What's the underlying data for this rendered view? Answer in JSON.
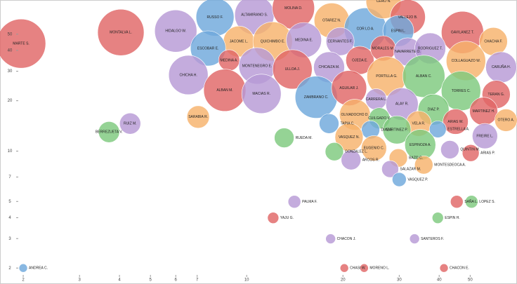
{
  "chart_data": {
    "type": "bubble",
    "x_log": true,
    "y_log": true,
    "xlim": [
      1.93,
      69
    ],
    "ylim": [
      1.82,
      80
    ],
    "xticks": [
      2,
      3,
      4,
      5,
      6,
      7,
      10,
      20,
      30,
      40,
      50
    ],
    "yticks": [
      2,
      3,
      4,
      5,
      7,
      10,
      20,
      30,
      40,
      50
    ],
    "points": [
      {
        "label": "MARTE S.",
        "x": 1.97,
        "y": 43.9,
        "size": 35,
        "color": "#e06666"
      },
      {
        "label": "MONTALVA L.",
        "x": 4.04,
        "y": 51.2,
        "size": 33,
        "color": "#e06666"
      },
      {
        "label": "HIDALGO W.",
        "x": 6.0,
        "y": 52.2,
        "size": 30,
        "color": "#b79ad6"
      },
      {
        "label": "RUSSO F.",
        "x": 7.96,
        "y": 63.2,
        "size": 27,
        "color": "#6fa8dc"
      },
      {
        "label": "ALTAMIRANO S.",
        "x": 10.57,
        "y": 65.1,
        "size": 28,
        "color": "#b79ad6"
      },
      {
        "label": "MOLINA D.",
        "x": 14.0,
        "y": 71.6,
        "size": 30,
        "color": "#e06666"
      },
      {
        "label": "OTAREZ N.",
        "x": 18.45,
        "y": 60.3,
        "size": 25,
        "color": "#f6b26b"
      },
      {
        "label": "COR LO A.",
        "x": 23.5,
        "y": 53.7,
        "size": 30,
        "color": "#6fa8dc"
      },
      {
        "label": "CERO N.",
        "x": 26.8,
        "y": 78.8,
        "size": 25,
        "color": "#f6b26b"
      },
      {
        "label": "VALLEJO B.",
        "x": 31.9,
        "y": 63.2,
        "size": 25,
        "color": "#e06666"
      },
      {
        "label": "ESPIN L.",
        "x": 29.8,
        "y": 52.2,
        "size": 22,
        "color": "#6fa8dc"
      },
      {
        "label": "GAVILANEZ T.",
        "x": 47.3,
        "y": 51.2,
        "size": 30,
        "color": "#e06666"
      },
      {
        "label": "CHACHA F.",
        "x": 59.1,
        "y": 45.2,
        "size": 20,
        "color": "#f6b26b"
      },
      {
        "label": "JACOME L.",
        "x": 9.45,
        "y": 45.2,
        "size": 22,
        "color": "#f6b26b"
      },
      {
        "label": "ESCOBAR E.",
        "x": 7.57,
        "y": 41.1,
        "size": 25,
        "color": "#6fa8dc"
      },
      {
        "label": "QUICHIMBO E.",
        "x": 12.06,
        "y": 45.2,
        "size": 28,
        "color": "#f6b26b"
      },
      {
        "label": "MEDINA E.",
        "x": 15.1,
        "y": 46.1,
        "size": 25,
        "color": "#b79ad6"
      },
      {
        "label": "CERVANTES F.",
        "x": 19.6,
        "y": 45.2,
        "size": 20,
        "color": "#b79ad6"
      },
      {
        "label": "MEDINA A.",
        "x": 8.81,
        "y": 34.9,
        "size": 15,
        "color": "#e06666"
      },
      {
        "label": "MONTENEGRO E.",
        "x": 10.78,
        "y": 32.3,
        "size": 26,
        "color": "#b79ad6"
      },
      {
        "label": "ULLOA J.",
        "x": 13.9,
        "y": 30.8,
        "size": 28,
        "color": "#e06666"
      },
      {
        "label": "CHICAIZA M.",
        "x": 18.1,
        "y": 31.7,
        "size": 22,
        "color": "#b79ad6"
      },
      {
        "label": "OJEDA E.",
        "x": 22.6,
        "y": 34.9,
        "size": 20,
        "color": "#e06666"
      },
      {
        "label": "MORALES M.",
        "x": 26.7,
        "y": 41.1,
        "size": 18,
        "color": "#e06666"
      },
      {
        "label": "NAVARRETE O.",
        "x": 31.9,
        "y": 39.2,
        "size": 20,
        "color": "#b79ad6"
      },
      {
        "label": "RODRIGUEZ T.",
        "x": 37.5,
        "y": 41.1,
        "size": 22,
        "color": "#b79ad6"
      },
      {
        "label": "COLLAGUAZO W.",
        "x": 48.5,
        "y": 34.6,
        "size": 28,
        "color": "#f6b26b"
      },
      {
        "label": "CARUÑA H.",
        "x": 62.5,
        "y": 31.7,
        "size": 22,
        "color": "#b79ad6"
      },
      {
        "label": "CHICHA H.",
        "x": 6.57,
        "y": 28.5,
        "size": 28,
        "color": "#b79ad6"
      },
      {
        "label": "ALBAN M.",
        "x": 8.54,
        "y": 23.1,
        "size": 30,
        "color": "#e06666"
      },
      {
        "label": "MACIAS R.",
        "x": 11.12,
        "y": 22.0,
        "size": 28,
        "color": "#b79ad6"
      },
      {
        "label": "PORTILLA G.",
        "x": 27.4,
        "y": 28.0,
        "size": 28,
        "color": "#f6b26b"
      },
      {
        "label": "ALBAN C.",
        "x": 35.8,
        "y": 28.0,
        "size": 30,
        "color": "#7ec97e"
      },
      {
        "label": "ZAMBRANO C.",
        "x": 16.5,
        "y": 21.0,
        "size": 30,
        "color": "#6fa8dc"
      },
      {
        "label": "AGUILAR J.",
        "x": 20.9,
        "y": 23.8,
        "size": 25,
        "color": "#e06666"
      },
      {
        "label": "TORRES C.",
        "x": 46.8,
        "y": 22.9,
        "size": 28,
        "color": "#7ec97e"
      },
      {
        "label": "TERAN G.",
        "x": 60.3,
        "y": 21.8,
        "size": 20,
        "color": "#e06666"
      },
      {
        "label": "CARRERA L.",
        "x": 25.4,
        "y": 20.4,
        "size": 15,
        "color": "#b79ad6"
      },
      {
        "label": "ALAY R.",
        "x": 30.6,
        "y": 19.1,
        "size": 23,
        "color": "#b79ad6"
      },
      {
        "label": "DIAZ P.",
        "x": 38.4,
        "y": 17.7,
        "size": 22,
        "color": "#7ec97e"
      },
      {
        "label": "MARTINEZ H.",
        "x": 55.1,
        "y": 17.3,
        "size": 20,
        "color": "#e06666"
      },
      {
        "label": "OTERO A.",
        "x": 64.7,
        "y": 15.3,
        "size": 16,
        "color": "#f6b26b"
      },
      {
        "label": "OLIVADOCHO D.",
        "x": 21.8,
        "y": 16.5,
        "size": 22,
        "color": "#f6b26b"
      },
      {
        "label": "CUILGADO V.",
        "x": 26.0,
        "y": 15.7,
        "size": 15,
        "color": "#7ec97e"
      },
      {
        "label": "SARABIA R.",
        "x": 7.05,
        "y": 16.0,
        "size": 16,
        "color": "#f6b26b"
      },
      {
        "label": "RUIZ M.",
        "x": 4.32,
        "y": 14.6,
        "size": 15,
        "color": "#b79ad6"
      },
      {
        "label": "BERREZUETA V.",
        "x": 3.71,
        "y": 13.0,
        "size": 15,
        "color": "#7ec97e"
      },
      {
        "label": "TAPIA C.",
        "x": 18.1,
        "y": 14.6,
        "size": 14,
        "color": "#6fa8dc"
      },
      {
        "label": "VELA R.",
        "x": 34.5,
        "y": 14.6,
        "size": 18,
        "color": "#f6b26b"
      },
      {
        "label": "ARIAS W.",
        "x": 45.0,
        "y": 15.0,
        "size": 18,
        "color": "#e06666"
      },
      {
        "label": "FREIRE L.",
        "x": 55.6,
        "y": 12.3,
        "size": 18,
        "color": "#b79ad6"
      },
      {
        "label": "DIAZ F.",
        "x": 24.4,
        "y": 13.4,
        "size": 13,
        "color": "#6fa8dc"
      },
      {
        "label": "MARTINEZ P.",
        "x": 29.5,
        "y": 13.4,
        "size": 20,
        "color": "#7ec97e"
      },
      {
        "label": "ESTRELLA A.",
        "x": 39.6,
        "y": 13.5,
        "size": 12,
        "color": "#6fa8dc"
      },
      {
        "label": "VASQUEZ N.",
        "x": 20.9,
        "y": 12.1,
        "size": 20,
        "color": "#f6b26b"
      },
      {
        "label": "RUEDA M.",
        "x": 13.1,
        "y": 12.0,
        "size": 14,
        "color": "#7ec97e"
      },
      {
        "label": "ESPINOZA A.",
        "x": 34.9,
        "y": 10.9,
        "size": 22,
        "color": "#7ec97e"
      },
      {
        "label": "EUGENIO C.",
        "x": 25.0,
        "y": 10.4,
        "size": 18,
        "color": "#f6b26b"
      },
      {
        "label": "GONZALEZ L.",
        "x": 18.8,
        "y": 9.93,
        "size": 13,
        "color": "#7ec97e"
      },
      {
        "label": "QUINTIN M.",
        "x": 43.2,
        "y": 10.2,
        "size": 13,
        "color": "#b79ad6"
      },
      {
        "label": "ARIAS P.",
        "x": 50.2,
        "y": 9.74,
        "size": 12,
        "color": "#e06666"
      },
      {
        "label": "ARCOS R.",
        "x": 21.2,
        "y": 8.85,
        "size": 14,
        "color": "#b79ad6"
      },
      {
        "label": "BAZO C.",
        "x": 29.8,
        "y": 9.1,
        "size": 13,
        "color": "#f6b26b"
      },
      {
        "label": "MONTESDEOCA A.",
        "x": 35.8,
        "y": 8.27,
        "size": 13,
        "color": "#f6b26b"
      },
      {
        "label": "SALAZAR M.",
        "x": 28.1,
        "y": 7.81,
        "size": 12,
        "color": "#b79ad6"
      },
      {
        "label": "VASQUEZ P.",
        "x": 30.0,
        "y": 6.76,
        "size": 10,
        "color": "#6fa8dc"
      },
      {
        "label": "PALMA F.",
        "x": 14.1,
        "y": 4.98,
        "size": 9,
        "color": "#b79ad6"
      },
      {
        "label": "YAJU G.",
        "x": 12.1,
        "y": 3.99,
        "size": 8,
        "color": "#e06666"
      },
      {
        "label": "CHACON J.",
        "x": 18.3,
        "y": 2.99,
        "size": 7,
        "color": "#b79ad6"
      },
      {
        "label": "SAÑA L.",
        "x": 45.4,
        "y": 4.98,
        "size": 9,
        "color": "#e06666"
      },
      {
        "label": "LOPEZ S.",
        "x": 50.5,
        "y": 4.98,
        "size": 9,
        "color": "#7ec97e"
      },
      {
        "label": "ESPIN H.",
        "x": 39.6,
        "y": 3.99,
        "size": 8,
        "color": "#7ec97e"
      },
      {
        "label": "SANTEROS F.",
        "x": 33.5,
        "y": 2.99,
        "size": 7,
        "color": "#b79ad6"
      },
      {
        "label": "ANDREA C.",
        "x": 2.0,
        "y": 2.0,
        "size": 6,
        "color": "#6fa8dc"
      },
      {
        "label": "CHASI W.",
        "x": 20.2,
        "y": 2.0,
        "size": 6,
        "color": "#e06666"
      },
      {
        "label": "MORENO L.",
        "x": 23.3,
        "y": 2.0,
        "size": 6,
        "color": "#e06666"
      },
      {
        "label": "CHACON E.",
        "x": 41.4,
        "y": 2.0,
        "size": 6,
        "color": "#e06666"
      }
    ]
  }
}
